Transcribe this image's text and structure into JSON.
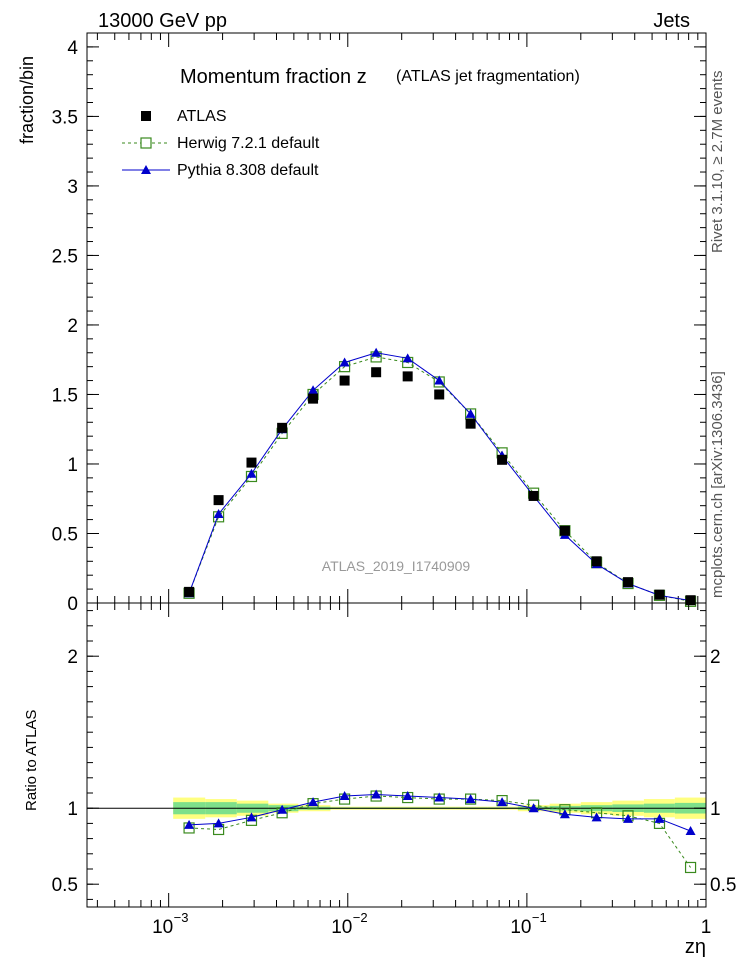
{
  "header": {
    "left": "13000 GeV pp",
    "right": "Jets"
  },
  "side_labels": {
    "upper": "Rivet 3.1.10, ≥ 2.7M events",
    "lower": "mcplots.cern.ch [arXiv:1306.3436]"
  },
  "chart_data": [
    {
      "type": "scatter",
      "title": "Momentum fraction z",
      "subtitle": "(ATLAS jet fragmentation)",
      "watermark": "ATLAS_2019_I1740909",
      "ylabel": "fraction/bin",
      "xlabel": "zη",
      "x_scale": "log",
      "xlim": [
        0.00035,
        1.0
      ],
      "ylim": [
        0,
        4.1
      ],
      "yticks": [
        0,
        0.5,
        1,
        1.5,
        2,
        2.5,
        3,
        3.5,
        4
      ],
      "ytick_labels": [
        "0",
        "0.5",
        "1",
        "1.5",
        "2",
        "2.5",
        "3",
        "3.5",
        "4"
      ],
      "xticks": [
        0.001,
        0.01,
        0.1,
        1
      ],
      "xtick_labels": [
        "10",
        "10",
        "10",
        "1"
      ],
      "xtick_exponents": [
        "−3",
        "−2",
        "−1",
        ""
      ],
      "legend_position": "top-left",
      "x": [
        0.0013,
        0.0019,
        0.0029,
        0.0043,
        0.0064,
        0.0096,
        0.0144,
        0.0216,
        0.0324,
        0.0485,
        0.0727,
        0.109,
        0.163,
        0.245,
        0.367,
        0.55,
        0.82
      ],
      "series": [
        {
          "name": "ATLAS",
          "color": "#000000",
          "marker": "square-filled",
          "values": [
            0.08,
            0.74,
            1.01,
            1.26,
            1.47,
            1.6,
            1.66,
            1.63,
            1.5,
            1.29,
            1.03,
            0.77,
            0.52,
            0.3,
            0.15,
            0.06,
            0.02
          ]
        },
        {
          "name": "Herwig 7.2.1 default",
          "color": "#3a8a1e",
          "marker": "square-open",
          "line": "dashed",
          "values": [
            0.07,
            0.62,
            0.91,
            1.22,
            1.5,
            1.7,
            1.77,
            1.73,
            1.59,
            1.36,
            1.08,
            0.79,
            0.52,
            0.29,
            0.14,
            0.055,
            0.012
          ]
        },
        {
          "name": "Pythia 8.308 default",
          "color": "#0000cc",
          "marker": "triangle-filled",
          "line": "solid",
          "values": [
            0.07,
            0.64,
            0.93,
            1.25,
            1.53,
            1.73,
            1.8,
            1.76,
            1.6,
            1.36,
            1.06,
            0.77,
            0.49,
            0.28,
            0.14,
            0.055,
            0.017
          ]
        }
      ]
    },
    {
      "type": "line",
      "ylabel": "Ratio to ATLAS",
      "x_scale": "log",
      "xlim": [
        0.00035,
        1.0
      ],
      "ylim": [
        0.35,
        2.35
      ],
      "yticks": [
        0.5,
        1,
        2
      ],
      "ytick_labels": [
        "0.5",
        "1",
        "2"
      ],
      "band_edges": [
        0.00106,
        0.0016,
        0.0024,
        0.0036,
        0.0053,
        0.008,
        0.012,
        0.018,
        0.027,
        0.04,
        0.06,
        0.089,
        0.134,
        0.2,
        0.3,
        0.45,
        0.67,
        1.0
      ],
      "bands": [
        {
          "name": "total uncertainty",
          "color": "#ffff80",
          "lower": [
            0.93,
            0.94,
            0.95,
            0.97,
            0.98,
            0.99,
            0.99,
            0.99,
            0.99,
            0.99,
            0.99,
            0.98,
            0.97,
            0.96,
            0.95,
            0.94,
            0.93
          ],
          "upper": [
            1.07,
            1.06,
            1.05,
            1.03,
            1.02,
            1.01,
            1.01,
            1.01,
            1.01,
            1.01,
            1.01,
            1.02,
            1.03,
            1.04,
            1.05,
            1.06,
            1.07
          ]
        },
        {
          "name": "stat uncertainty",
          "color": "#7ee08a",
          "lower": [
            0.96,
            0.96,
            0.97,
            0.98,
            0.99,
            0.995,
            0.995,
            0.995,
            0.995,
            0.995,
            0.995,
            0.99,
            0.985,
            0.98,
            0.975,
            0.97,
            0.965
          ],
          "upper": [
            1.04,
            1.04,
            1.03,
            1.02,
            1.01,
            1.005,
            1.005,
            1.005,
            1.005,
            1.005,
            1.005,
            1.01,
            1.015,
            1.02,
            1.025,
            1.03,
            1.035
          ]
        }
      ],
      "x": [
        0.0013,
        0.0019,
        0.0029,
        0.0043,
        0.0064,
        0.0096,
        0.0144,
        0.0216,
        0.0324,
        0.0485,
        0.0727,
        0.109,
        0.163,
        0.245,
        0.367,
        0.55,
        0.82
      ],
      "series": [
        {
          "name": "Herwig 7.2.1 default",
          "color": "#3a8a1e",
          "marker": "square-open",
          "line": "dashed",
          "values": [
            0.87,
            0.86,
            0.92,
            0.97,
            1.03,
            1.06,
            1.08,
            1.07,
            1.06,
            1.06,
            1.05,
            1.02,
            0.99,
            0.97,
            0.95,
            0.9,
            0.61
          ]
        },
        {
          "name": "Pythia 8.308 default",
          "color": "#0000cc",
          "marker": "triangle-filled",
          "line": "solid",
          "values": [
            0.89,
            0.9,
            0.94,
            0.99,
            1.04,
            1.08,
            1.09,
            1.08,
            1.07,
            1.06,
            1.04,
            1.0,
            0.96,
            0.94,
            0.93,
            0.93,
            0.85
          ]
        }
      ]
    }
  ]
}
